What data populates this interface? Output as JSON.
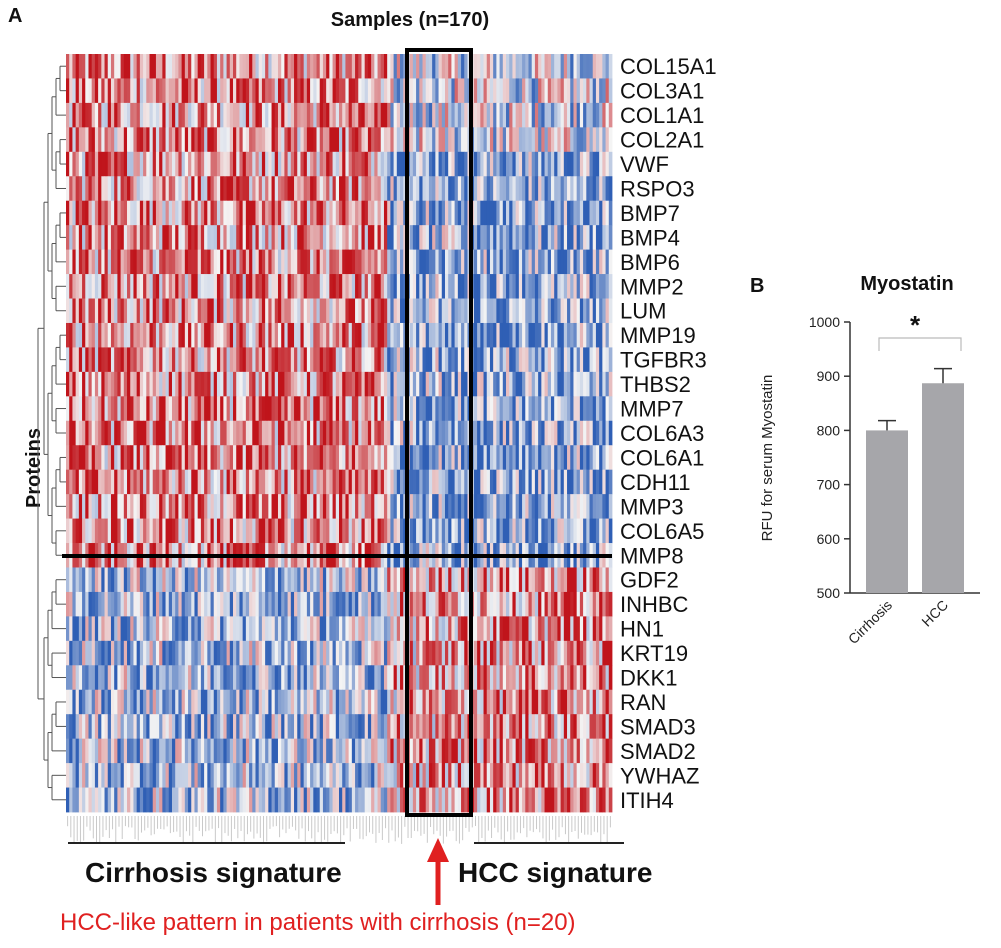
{
  "chart_data": [
    {
      "panel": "A",
      "type": "heatmap",
      "title": "Samples (n=170)",
      "ylabel": "Proteins",
      "n_samples": 170,
      "rows": [
        "COL15A1",
        "COL3A1",
        "COL1A1",
        "COL2A1",
        "VWF",
        "RSPO3",
        "BMP7",
        "BMP4",
        "BMP6",
        "MMP2",
        "LUM",
        "MMP19",
        "TGFBR3",
        "THBS2",
        "MMP7",
        "COL6A3",
        "COL6A1",
        "CDH11",
        "MMP3",
        "COL6A5",
        "MMP8",
        "GDF2",
        "INHBC",
        "HN1",
        "KRT19",
        "DKK1",
        "RAN",
        "SMAD3",
        "SMAD2",
        "YWHAZ",
        "ITIH4"
      ],
      "groups": [
        {
          "name": "Cirrhosis signature",
          "samples": 100
        },
        {
          "name": "HCC-like cirrhosis",
          "samples": 20
        },
        {
          "name": "HCC signature",
          "samples": 50
        }
      ],
      "row_group_split_after": "MMP8",
      "color_scale": {
        "low": "#2f5fb5",
        "mid": "#f4f4f4",
        "high": "#c0141b"
      },
      "annotations": {
        "cirrhosis_signature": "Cirrhosis signature",
        "hcc_signature": "HCC signature",
        "hcc_like_note": "HCC-like pattern in patients with cirrhosis (n=20)"
      }
    },
    {
      "panel": "B",
      "type": "bar",
      "title": "Myostatin",
      "categories": [
        "Cirrhosis",
        "HCC"
      ],
      "values": [
        800,
        887
      ],
      "errors": [
        18,
        27
      ],
      "ylabel": "RFU for serum Myostatin",
      "ylim": [
        500,
        1000
      ],
      "yticks": [
        "500",
        "600",
        "700",
        "800",
        "900",
        "1000"
      ],
      "significance": "*",
      "bar_color": "#a6a6aa"
    }
  ],
  "panel_labels": {
    "a": "A",
    "b": "B"
  }
}
